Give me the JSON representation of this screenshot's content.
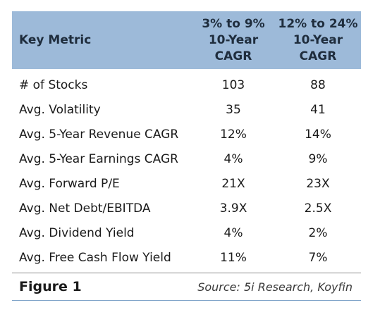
{
  "table": {
    "headers": {
      "metric": "Key Metric",
      "col1": "3% to 9%\n10-Year\nCAGR",
      "col2": "12% to 24%\n10-Year\nCAGR"
    },
    "rows": [
      {
        "metric": "# of Stocks",
        "col1": "103",
        "col2": "88"
      },
      {
        "metric": "Avg. Volatility",
        "col1": "35",
        "col2": "41"
      },
      {
        "metric": "Avg. 5-Year Revenue CAGR",
        "col1": "12%",
        "col2": "14%"
      },
      {
        "metric": "Avg. 5-Year Earnings CAGR",
        "col1": "4%",
        "col2": "9%"
      },
      {
        "metric": "Avg. Forward P/E",
        "col1": "21X",
        "col2": "23X"
      },
      {
        "metric": "Avg. Net Debt/EBITDA",
        "col1": "3.9X",
        "col2": "2.5X"
      },
      {
        "metric": "Avg. Dividend Yield",
        "col1": "4%",
        "col2": "2%"
      },
      {
        "metric": "Avg. Free Cash Flow Yield",
        "col1": "11%",
        "col2": "7%"
      }
    ]
  },
  "footer": {
    "figure_label": "Figure 1",
    "source": "Source: 5i Research, Koyfin"
  },
  "colors": {
    "header_background": "#9dbad9",
    "bottom_rule": "#7fa4c9"
  }
}
